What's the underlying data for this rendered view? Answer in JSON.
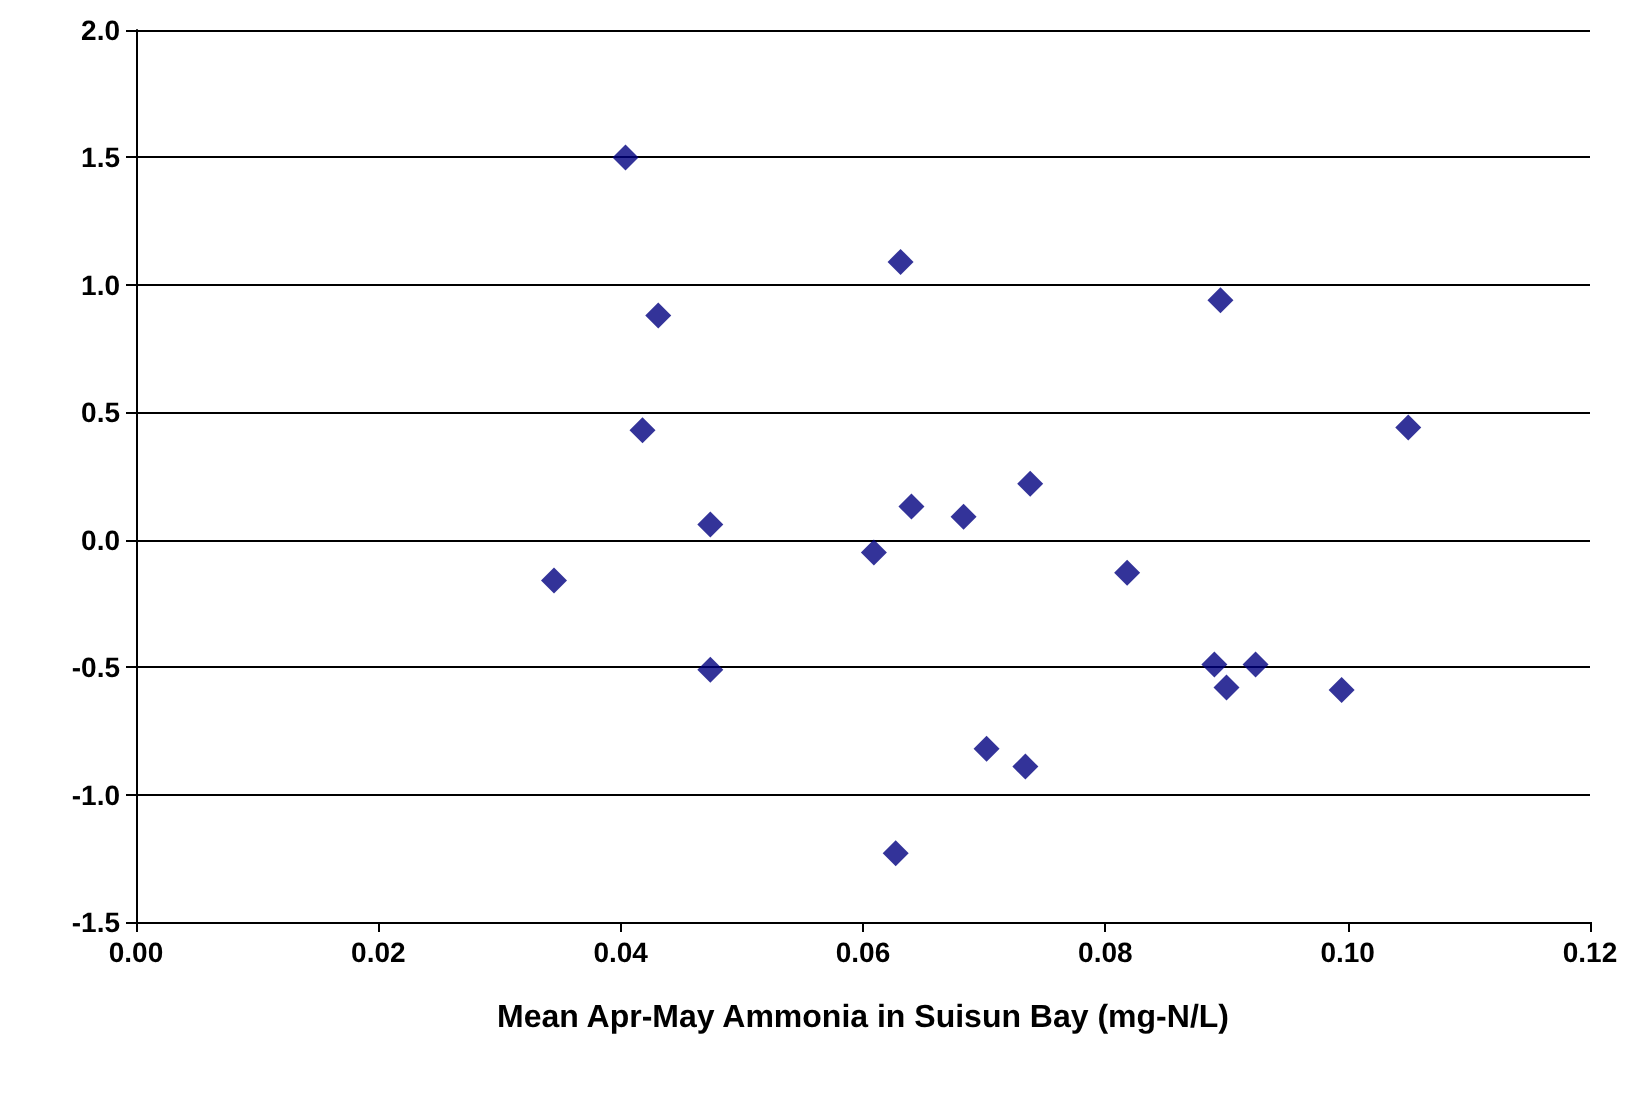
{
  "chart_data": {
    "type": "scatter",
    "xlabel": "Mean Apr-May Ammonia in Suisun Bay (mg-N/L)",
    "x": [
      0.0345,
      0.0404,
      0.0431,
      0.0418,
      0.0474,
      0.0474,
      0.0631,
      0.0609,
      0.064,
      0.0683,
      0.0627,
      0.0702,
      0.0734,
      0.0738,
      0.0818,
      0.089,
      0.0895,
      0.09,
      0.0924,
      0.0995,
      0.105
    ],
    "series": [
      {
        "color": "#000080",
        "values": [
          -0.16,
          1.5,
          0.88,
          0.43,
          0.06,
          -0.51,
          1.09,
          -0.05,
          0.13,
          0.09,
          -1.23,
          -0.82,
          -0.89,
          0.22,
          -0.13,
          -0.49,
          0.94,
          -0.58,
          -0.49,
          -0.59,
          0.44
        ]
      }
    ],
    "xlim": [
      0,
      0.12
    ],
    "xticks": [
      {
        "value": 0,
        "label": "0.00"
      },
      {
        "value": 0.02,
        "label": "0.02"
      },
      {
        "value": 0.04,
        "label": "0.04"
      },
      {
        "value": 0.06,
        "label": "0.06"
      },
      {
        "value": 0.08,
        "label": "0.08"
      },
      {
        "value": 0.1,
        "label": "0.10"
      },
      {
        "value": 0.12,
        "label": "0.12"
      }
    ],
    "ylim": [
      -1.5,
      2
    ],
    "yticks": [
      {
        "value": -1.5,
        "label": "-1.5"
      },
      {
        "value": -1,
        "label": "-1.0"
      },
      {
        "value": -0.5,
        "label": "-0.5"
      },
      {
        "value": 0,
        "label": "0.0"
      },
      {
        "value": 0.5,
        "label": "0.5"
      },
      {
        "value": 1,
        "label": "1.0"
      },
      {
        "value": 1.5,
        "label": "1.5"
      },
      {
        "value": 2,
        "label": "2.0"
      }
    ],
    "grid": "y",
    "marker": "diamond"
  }
}
